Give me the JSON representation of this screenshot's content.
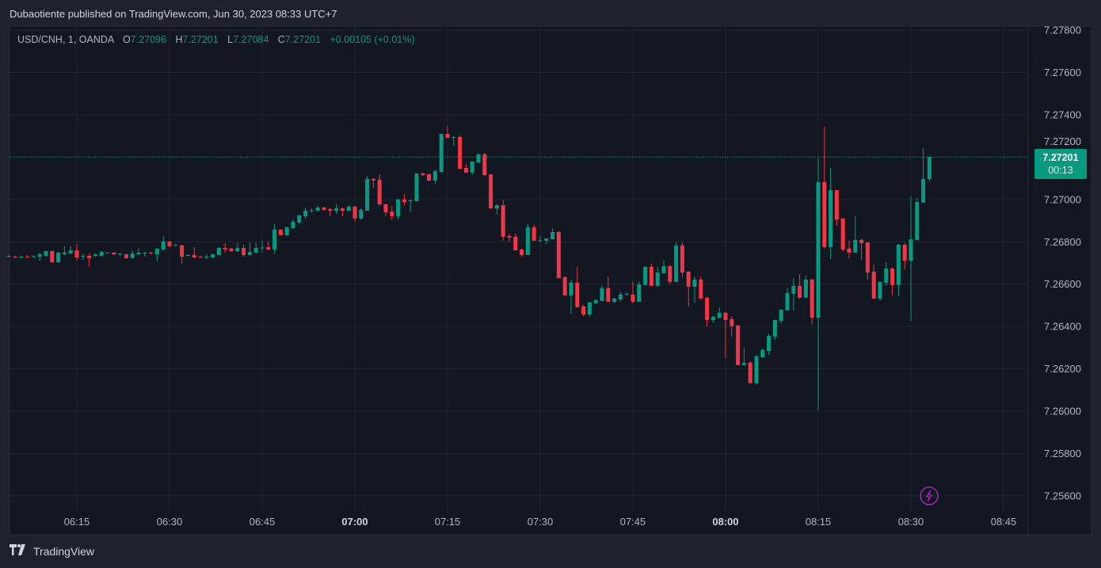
{
  "publish_line": "Dubaotiente published on TradingView.com, Jun 30, 2023 08:33 UTC+7",
  "legend": {
    "symbol": "USD/CNH, 1, OANDA",
    "o_label": "O",
    "o": "7.27096",
    "h_label": "H",
    "h": "7.27201",
    "l_label": "L",
    "l": "7.27084",
    "c_label": "C",
    "c": "7.27201",
    "change": "+0.00105 (+0.01%)"
  },
  "last_price": {
    "price": "7.27201",
    "countdown": "00:13",
    "value": 7.27201
  },
  "footer": {
    "brand": "TradingView",
    "logo_text": "TV"
  },
  "colors": {
    "up": "#089981",
    "down": "#f23645",
    "grid": "#22262f",
    "text": "#b2b5be",
    "alert": "#9c27b0"
  },
  "chart_data": {
    "type": "candlestick",
    "title": "USD/CNH, 1, OANDA",
    "interval_minutes": 1,
    "start_time": "06:04",
    "ylim": [
      7.2555,
      7.2781
    ],
    "grid": true,
    "y_ticks": [
      "7.27800",
      "7.27600",
      "7.27400",
      "7.27200",
      "7.27000",
      "7.26800",
      "7.26600",
      "7.26400",
      "7.26200",
      "7.26000",
      "7.25800",
      "7.25600"
    ],
    "x_ticks": [
      {
        "label": "06:15",
        "minute": 375,
        "bold": false
      },
      {
        "label": "06:30",
        "minute": 390,
        "bold": false
      },
      {
        "label": "06:45",
        "minute": 405,
        "bold": false
      },
      {
        "label": "07:00",
        "minute": 420,
        "bold": true
      },
      {
        "label": "07:15",
        "minute": 435,
        "bold": false
      },
      {
        "label": "07:30",
        "minute": 450,
        "bold": false
      },
      {
        "label": "07:45",
        "minute": 465,
        "bold": false
      },
      {
        "label": "08:00",
        "minute": 480,
        "bold": true
      },
      {
        "label": "08:15",
        "minute": 495,
        "bold": false
      },
      {
        "label": "08:30",
        "minute": 510,
        "bold": false
      },
      {
        "label": "08:45",
        "minute": 525,
        "bold": false
      }
    ],
    "candles_ohlc": [
      [
        7.2673,
        7.26738,
        7.26726,
        7.26734
      ],
      [
        7.2673,
        7.26734,
        7.26723,
        7.26726
      ],
      [
        7.26726,
        7.26734,
        7.26723,
        7.2673
      ],
      [
        7.2673,
        7.26738,
        7.26726,
        7.26728
      ],
      [
        7.26728,
        7.26738,
        7.26726,
        7.26732
      ],
      [
        7.2673,
        7.26749,
        7.26711,
        7.26741
      ],
      [
        7.26734,
        7.26758,
        7.2673,
        7.26756
      ],
      [
        7.26756,
        7.2676,
        7.267,
        7.26704
      ],
      [
        7.26704,
        7.26752,
        7.267,
        7.26749
      ],
      [
        7.26741,
        7.26779,
        7.26738,
        7.26749
      ],
      [
        7.26745,
        7.26779,
        7.26741,
        7.2676
      ],
      [
        7.2676,
        7.2679,
        7.26711,
        7.26726
      ],
      [
        7.2673,
        7.26745,
        7.26715,
        7.26734
      ],
      [
        7.26734,
        7.26745,
        7.26681,
        7.26723
      ],
      [
        7.26734,
        7.26745,
        7.2673,
        7.26741
      ],
      [
        7.26734,
        7.26756,
        7.2673,
        7.26752
      ],
      [
        7.26749,
        7.26752,
        7.26745,
        7.26749
      ],
      [
        7.26749,
        7.26752,
        7.26738,
        7.26741
      ],
      [
        7.26745,
        7.26749,
        7.26734,
        7.26745
      ],
      [
        7.26741,
        7.26745,
        7.26719,
        7.26723
      ],
      [
        7.26723,
        7.2676,
        7.26723,
        7.26745
      ],
      [
        7.26741,
        7.26771,
        7.26738,
        7.26749
      ],
      [
        7.26749,
        7.26752,
        7.2673,
        7.26749
      ],
      [
        7.26749,
        7.26752,
        7.26741,
        7.26745
      ],
      [
        7.26741,
        7.26768,
        7.26708,
        7.26768
      ],
      [
        7.26764,
        7.26827,
        7.2676,
        7.26801
      ],
      [
        7.26801,
        7.26805,
        7.26775,
        7.26779
      ],
      [
        7.26783,
        7.2679,
        7.26779,
        7.26785
      ],
      [
        7.26783,
        7.26786,
        7.26697,
        7.2673
      ],
      [
        7.26734,
        7.26741,
        7.2673,
        7.26738
      ],
      [
        7.26738,
        7.26775,
        7.26723,
        7.26726
      ],
      [
        7.2673,
        7.26734,
        7.26726,
        7.26728
      ],
      [
        7.26728,
        7.26741,
        7.26719,
        7.2673
      ],
      [
        7.26726,
        7.26745,
        7.26723,
        7.26741
      ],
      [
        7.26738,
        7.26775,
        7.26734,
        7.26771
      ],
      [
        7.26771,
        7.26794,
        7.26749,
        7.26764
      ],
      [
        7.26768,
        7.26771,
        7.26752,
        7.26756
      ],
      [
        7.26756,
        7.26794,
        7.26752,
        7.26771
      ],
      [
        7.26771,
        7.26786,
        7.2673,
        7.26738
      ],
      [
        7.26738,
        7.26797,
        7.26734,
        7.26752
      ],
      [
        7.26749,
        7.26797,
        7.26745,
        7.26771
      ],
      [
        7.26771,
        7.26805,
        7.26749,
        7.26773
      ],
      [
        7.26775,
        7.26801,
        7.2676,
        7.26764
      ],
      [
        7.26764,
        7.26884,
        7.26741,
        7.26857
      ],
      [
        7.26857,
        7.2686,
        7.26831,
        7.26831
      ],
      [
        7.26831,
        7.26872,
        7.26831,
        7.26869
      ],
      [
        7.26865,
        7.26906,
        7.26857,
        7.26895
      ],
      [
        7.26891,
        7.26928,
        7.26884,
        7.26925
      ],
      [
        7.26921,
        7.26962,
        7.2691,
        7.26947
      ],
      [
        7.26947,
        7.26958,
        7.26936,
        7.26949
      ],
      [
        7.26947,
        7.2697,
        7.26943,
        7.26962
      ],
      [
        7.26962,
        7.26966,
        7.26947,
        7.26951
      ],
      [
        7.26955,
        7.26958,
        7.26921,
        7.26947
      ],
      [
        7.26947,
        7.26977,
        7.26932,
        7.26958
      ],
      [
        7.26958,
        7.26962,
        7.26921,
        7.26947
      ],
      [
        7.26947,
        7.26973,
        7.26943,
        7.26966
      ],
      [
        7.26966,
        7.2697,
        7.26895,
        7.2691
      ],
      [
        7.2691,
        7.26958,
        7.26906,
        7.26951
      ],
      [
        7.26947,
        7.27112,
        7.26947,
        7.27097
      ],
      [
        7.27097,
        7.27101,
        7.27056,
        7.2709
      ],
      [
        7.27093,
        7.27119,
        7.2697,
        7.26977
      ],
      [
        7.26977,
        7.26981,
        7.26921,
        7.2694
      ],
      [
        7.26943,
        7.2697,
        7.26902,
        7.26921
      ],
      [
        7.26921,
        7.27004,
        7.26906,
        7.27
      ],
      [
        7.27,
        7.27026,
        7.26973,
        7.26988
      ],
      [
        7.26992,
        7.27,
        7.26943,
        7.26996
      ],
      [
        7.26992,
        7.27123,
        7.26992,
        7.27123
      ],
      [
        7.27123,
        7.27127,
        7.27112,
        7.27115
      ],
      [
        7.27119,
        7.27123,
        7.27086,
        7.27089
      ],
      [
        7.27089,
        7.27141,
        7.27074,
        7.27134
      ],
      [
        7.2713,
        7.2731,
        7.27127,
        7.2731
      ],
      [
        7.2731,
        7.27347,
        7.27291,
        7.27291
      ],
      [
        7.27295,
        7.27298,
        7.27254,
        7.27295
      ],
      [
        7.27295,
        7.27302,
        7.27141,
        7.27145
      ],
      [
        7.27149,
        7.27168,
        7.27127,
        7.27127
      ],
      [
        7.27127,
        7.27182,
        7.27115,
        7.27179
      ],
      [
        7.27175,
        7.2722,
        7.27171,
        7.27213
      ],
      [
        7.27213,
        7.2722,
        7.27112,
        7.27115
      ],
      [
        7.27119,
        7.27119,
        7.26958,
        7.26958
      ],
      [
        7.26958,
        7.26977,
        7.26929,
        7.26973
      ],
      [
        7.26973,
        7.26996,
        7.26805,
        7.26824
      ],
      [
        7.26827,
        7.26838,
        7.26801,
        7.2682
      ],
      [
        7.26824,
        7.26838,
        7.2676,
        7.2676
      ],
      [
        7.26764,
        7.26768,
        7.26727,
        7.26738
      ],
      [
        7.26738,
        7.26887,
        7.26738,
        7.26869
      ],
      [
        7.26869,
        7.2688,
        7.26805,
        7.26805
      ],
      [
        7.26805,
        7.26827,
        7.26797,
        7.26808
      ],
      [
        7.26805,
        7.26816,
        7.2679,
        7.26816
      ],
      [
        7.26812,
        7.26865,
        7.26812,
        7.26846
      ],
      [
        7.26846,
        7.2685,
        7.26629,
        7.26629
      ],
      [
        7.26633,
        7.26636,
        7.26547,
        7.26547
      ],
      [
        7.26547,
        7.26622,
        7.26461,
        7.26607
      ],
      [
        7.26607,
        7.26682,
        7.26491,
        7.26491
      ],
      [
        7.26495,
        7.26502,
        7.2645,
        7.26457
      ],
      [
        7.26457,
        7.26517,
        7.2645,
        7.26513
      ],
      [
        7.2651,
        7.26528,
        7.26506,
        7.26525
      ],
      [
        7.26521,
        7.26592,
        7.26521,
        7.26581
      ],
      [
        7.26581,
        7.26637,
        7.26517,
        7.26517
      ],
      [
        7.26517,
        7.26536,
        7.2651,
        7.26532
      ],
      [
        7.26528,
        7.26566,
        7.26517,
        7.26551
      ],
      [
        7.26551,
        7.26562,
        7.26547,
        7.26553
      ],
      [
        7.26551,
        7.26611,
        7.2651,
        7.26517
      ],
      [
        7.26517,
        7.26614,
        7.26517,
        7.26599
      ],
      [
        7.26596,
        7.26682,
        7.26596,
        7.26682
      ],
      [
        7.26682,
        7.26697,
        7.26592,
        7.26592
      ],
      [
        7.26592,
        7.26682,
        7.26588,
        7.26655
      ],
      [
        7.26652,
        7.26711,
        7.26652,
        7.26685
      ],
      [
        7.26685,
        7.2669,
        7.26599,
        7.26611
      ],
      [
        7.26611,
        7.26801,
        7.26611,
        7.26783
      ],
      [
        7.26783,
        7.26797,
        7.26633,
        7.26655
      ],
      [
        7.26659,
        7.26663,
        7.26495,
        7.26588
      ],
      [
        7.26588,
        7.26637,
        7.26513,
        7.26622
      ],
      [
        7.26622,
        7.26637,
        7.26532,
        7.26532
      ],
      [
        7.26536,
        7.2654,
        7.26401,
        7.26431
      ],
      [
        7.26431,
        7.2645,
        7.2642,
        7.26446
      ],
      [
        7.26442,
        7.26491,
        7.26438,
        7.26465
      ],
      [
        7.26465,
        7.26468,
        7.26251,
        7.26431
      ],
      [
        7.26435,
        7.2645,
        7.26352,
        7.26401
      ],
      [
        7.26405,
        7.26405,
        7.26218,
        7.26218
      ],
      [
        7.26218,
        7.263,
        7.26214,
        7.26229
      ],
      [
        7.26229,
        7.26236,
        7.26132,
        7.26132
      ],
      [
        7.26132,
        7.26266,
        7.26125,
        7.26259
      ],
      [
        7.26255,
        7.26296,
        7.26251,
        7.26289
      ],
      [
        7.26285,
        7.26367,
        7.26266,
        7.26356
      ],
      [
        7.26352,
        7.26431,
        7.26337,
        7.26431
      ],
      [
        7.26427,
        7.2648,
        7.26416,
        7.2648
      ],
      [
        7.26476,
        7.26581,
        7.26476,
        7.26558
      ],
      [
        7.26555,
        7.26629,
        7.26476,
        7.26592
      ],
      [
        7.26592,
        7.26648,
        7.26532,
        7.26536
      ],
      [
        7.26536,
        7.26641,
        7.26536,
        7.26622
      ],
      [
        7.26622,
        7.26626,
        7.26409,
        7.26442
      ],
      [
        7.26442,
        7.27194,
        7.26004,
        7.27082
      ],
      [
        7.27082,
        7.27344,
        7.26768,
        7.26775
      ],
      [
        7.26775,
        7.27149,
        7.26719,
        7.27044
      ],
      [
        7.27044,
        7.27044,
        7.26876,
        7.26906
      ],
      [
        7.2691,
        7.26913,
        7.26753,
        7.26764
      ],
      [
        7.26768,
        7.26805,
        7.26723,
        7.26749
      ],
      [
        7.26749,
        7.26925,
        7.26749,
        7.26809
      ],
      [
        7.26809,
        7.26816,
        7.26715,
        7.26794
      ],
      [
        7.26797,
        7.26797,
        7.26622,
        7.26655
      ],
      [
        7.26659,
        7.26693,
        7.26532,
        7.26532
      ],
      [
        7.26532,
        7.26611,
        7.26521,
        7.26611
      ],
      [
        7.26607,
        7.26704,
        7.26592,
        7.26674
      ],
      [
        7.26674,
        7.26678,
        7.26547,
        7.26596
      ],
      [
        7.26596,
        7.2679,
        7.26543,
        7.26786
      ],
      [
        7.26786,
        7.26794,
        7.2667,
        7.26711
      ],
      [
        7.26711,
        7.27014,
        7.26427,
        7.26812
      ],
      [
        7.26809,
        7.2701,
        7.26809,
        7.26988
      ],
      [
        7.26985,
        7.27243,
        7.26985,
        7.27097
      ],
      [
        7.27096,
        7.27201,
        7.27084,
        7.27201
      ]
    ]
  }
}
